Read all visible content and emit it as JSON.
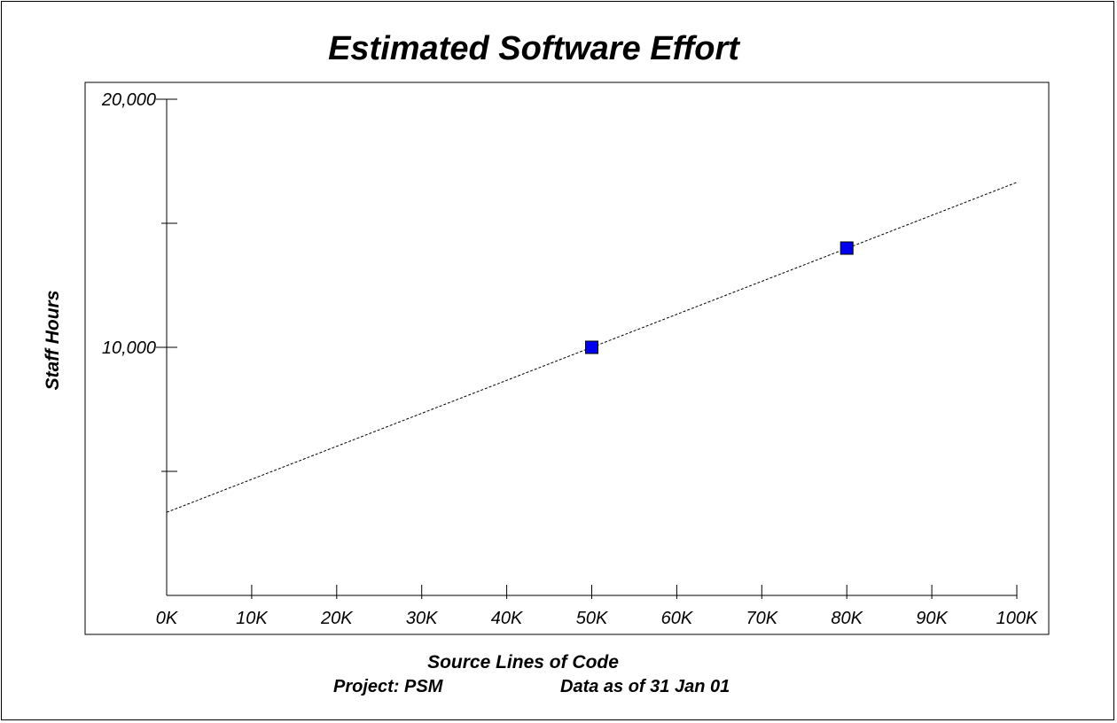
{
  "chart_data": {
    "type": "scatter",
    "title": "Estimated Software Effort",
    "xlabel": "Source Lines of Code",
    "ylabel": "Staff Hours",
    "xlim": [
      0,
      100000
    ],
    "ylim": [
      0,
      20000
    ],
    "x_ticks": [
      0,
      10000,
      20000,
      30000,
      40000,
      50000,
      60000,
      70000,
      80000,
      90000,
      100000
    ],
    "x_tick_labels": [
      "0K",
      "10K",
      "20K",
      "30K",
      "40K",
      "50K",
      "60K",
      "70K",
      "80K",
      "90K",
      "100K"
    ],
    "y_ticks": [
      0,
      5000,
      10000,
      15000,
      20000
    ],
    "y_tick_labels": [
      "",
      "",
      "10,000",
      "",
      "20,000"
    ],
    "series": [
      {
        "x": [
          50000,
          80000
        ],
        "y": [
          10000,
          14000
        ],
        "color": "#0000ee",
        "marker": "square"
      }
    ],
    "trend_line": {
      "x": [
        0,
        100000
      ],
      "y": [
        3350,
        16650
      ],
      "style": "dotted",
      "color": "#000000"
    },
    "grid": false,
    "legend": "none"
  },
  "footer": {
    "project": "Project: PSM",
    "data_as_of": "Data as of 31 Jan 01"
  }
}
